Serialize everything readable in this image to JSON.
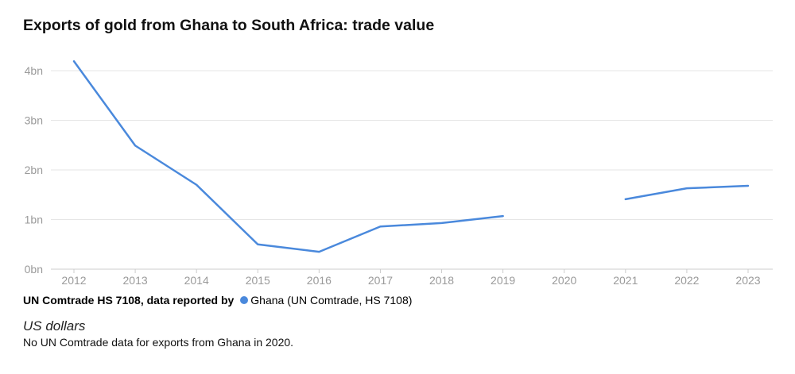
{
  "chart_data": {
    "type": "line",
    "title": "Exports of gold from Ghana to South Africa: trade value",
    "xlabel": "",
    "ylabel": "",
    "categories": [
      "2012",
      "2013",
      "2014",
      "2015",
      "2016",
      "2017",
      "2018",
      "2019",
      "2020",
      "2021",
      "2022",
      "2023"
    ],
    "series": [
      {
        "name": "Ghana (UN Comtrade, HS 7108)",
        "color": "#4a89dc",
        "values": [
          4.19,
          2.49,
          1.7,
          0.5,
          0.35,
          0.86,
          0.93,
          1.07,
          null,
          1.41,
          1.63,
          1.68
        ]
      }
    ],
    "yticks": [
      0,
      1,
      2,
      3,
      4
    ],
    "ytick_labels": [
      "0bn",
      "1bn",
      "2bn",
      "3bn",
      "4bn"
    ],
    "ylim": [
      0,
      4.2
    ],
    "grid": true,
    "legend_position": "bottom-left"
  },
  "legend": {
    "label": "UN Comtrade HS 7108, data reported by",
    "series_name": "Ghana (UN Comtrade, HS 7108)"
  },
  "unit": "US dollars",
  "note": "No UN Comtrade data for exports from Ghana in 2020.",
  "colors": {
    "series": "#4a89dc",
    "grid": "#e6e6e6",
    "axis": "#cccccc",
    "tick_text": "#9a9a9a"
  }
}
